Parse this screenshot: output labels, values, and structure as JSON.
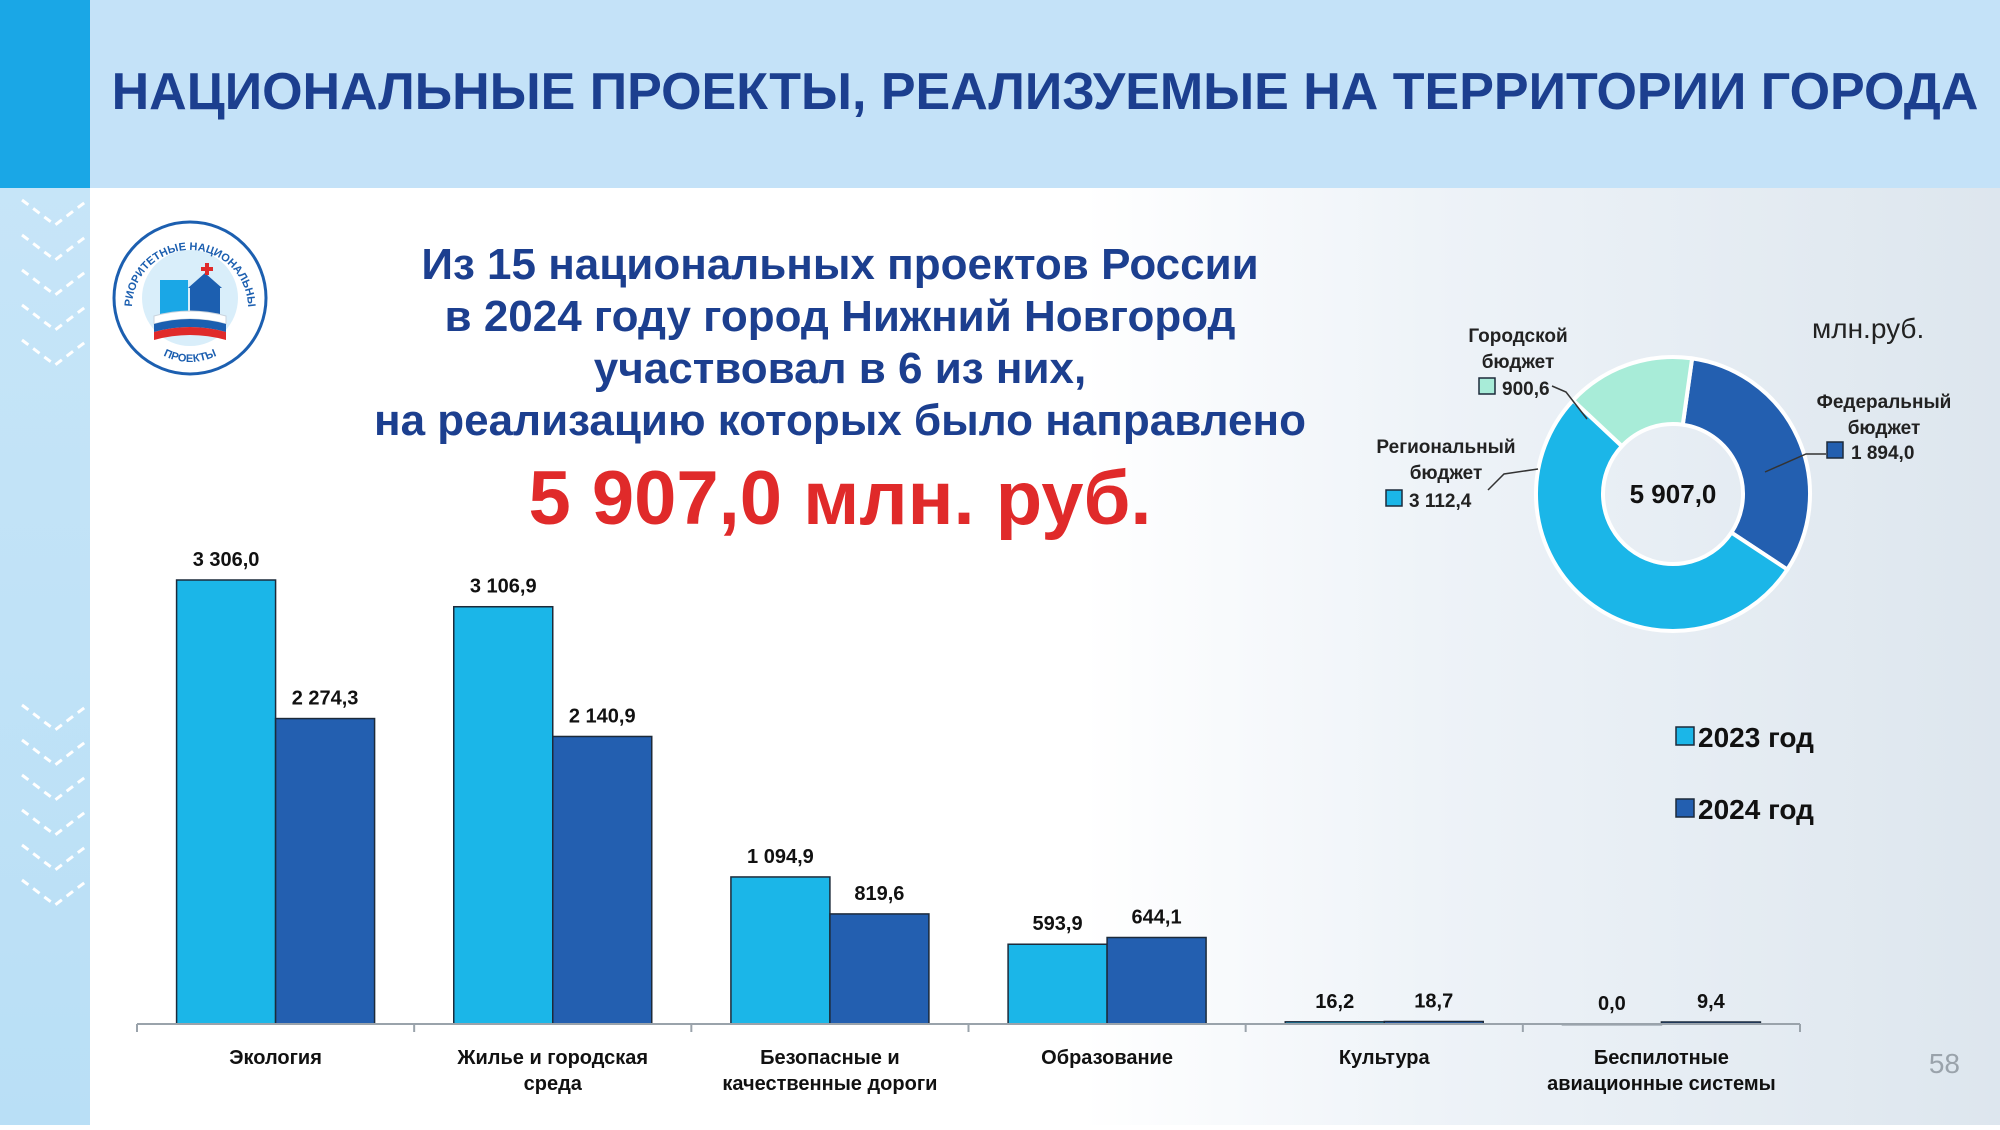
{
  "header": {
    "title": "НАЦИОНАЛЬНЫЕ ПРОЕКТЫ, РЕАЛИЗУЕМЫЕ НА ТЕРРИТОРИИ ГОРОДА"
  },
  "logo": {
    "text_top": "ПРИОРИТЕТНЫЕ НАЦИОНАЛЬНЫЕ",
    "text_bottom": "ПРОЕКТЫ"
  },
  "intro": {
    "line1": "Из 15 национальных проектов России",
    "line2": "в 2024 году город Нижний Новгород",
    "line3": "участвовал в 6 из них,",
    "line4": "на реализацию которых было направлено",
    "total": "5 907,0 млн. руб."
  },
  "page_number": "58",
  "colors": {
    "year_2023": "#1bb6e8",
    "year_2024": "#235fb0",
    "city_budget": "#a8ecd8",
    "federal_budget": "#235fb0",
    "regional_budget": "#1bb6e8",
    "title": "#1c3f8f",
    "total": "#e02a2a"
  },
  "chart_data": [
    {
      "type": "bar",
      "categories": [
        "Экология",
        "Жилье и городская среда",
        "Безопасные и качественные дороги",
        "Образование",
        "Культура",
        "Беспилотные авиационные системы"
      ],
      "category_lines": [
        [
          "Экология"
        ],
        [
          "Жилье и городская",
          "среда"
        ],
        [
          "Безопасные и",
          "качественные дороги"
        ],
        [
          "Образование"
        ],
        [
          "Культура"
        ],
        [
          "Беспилотные",
          "авиационные системы"
        ]
      ],
      "series": [
        {
          "name": "2023 год",
          "values": [
            3306.0,
            3106.9,
            1094.9,
            593.9,
            16.2,
            0.0
          ],
          "labels": [
            "3 306,0",
            "3 106,9",
            "1 094,9",
            "593,9",
            "16,2",
            "0,0"
          ]
        },
        {
          "name": "2024 год",
          "values": [
            2274.3,
            2140.9,
            819.6,
            644.1,
            18.7,
            9.4
          ],
          "labels": [
            "2 274,3",
            "2 140,9",
            "819,6",
            "644,1",
            "18,7",
            "9,4"
          ]
        }
      ],
      "ylim": [
        0,
        3306
      ],
      "legend_position": "right",
      "grid": false
    },
    {
      "type": "pie",
      "variant": "donut",
      "unit": "млн.руб.",
      "center_label": "5 907,0",
      "slices": [
        {
          "name": "Федеральный бюджет",
          "lines": [
            "Федеральный",
            "бюджет"
          ],
          "value": 1894.0,
          "label": "1 894,0"
        },
        {
          "name": "Региональный бюджет",
          "lines": [
            "Региональный",
            "бюджет"
          ],
          "value": 3112.4,
          "label": "3 112,4"
        },
        {
          "name": "Городской бюджет",
          "lines": [
            "Городской",
            "бюджет"
          ],
          "value": 900.6,
          "label": "900,6"
        }
      ]
    }
  ]
}
